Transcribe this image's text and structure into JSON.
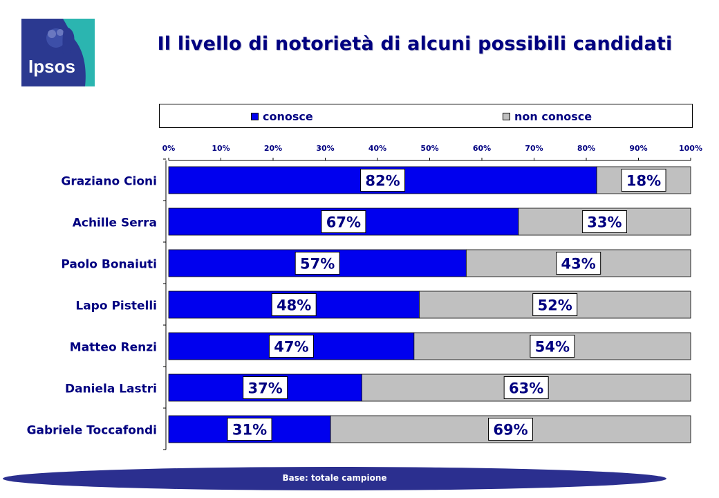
{
  "logo": {
    "text": "Ipsos",
    "colors": {
      "navy": "#2b3990",
      "teal": "#2bb5b0"
    }
  },
  "title": "Il livello di notorietà di alcuni possibili candidati",
  "legend": {
    "items": [
      {
        "label": "conosce",
        "color": "#0000ee"
      },
      {
        "label": "non conosce",
        "color": "#c0c0c0"
      }
    ]
  },
  "footer": {
    "text": "Base: totale campione",
    "color": "#2b2f8f"
  },
  "chart_data": {
    "type": "bar",
    "orientation": "horizontal",
    "stacked": true,
    "categories": [
      "Graziano Cioni",
      "Achille Serra",
      "Paolo Bonaiuti",
      "Lapo Pistelli",
      "Matteo Renzi",
      "Daniela Lastri",
      "Gabriele Toccafondi"
    ],
    "series": [
      {
        "name": "conosce",
        "values": [
          82,
          67,
          57,
          48,
          47,
          37,
          31
        ],
        "color": "#0000ee"
      },
      {
        "name": "non conosce",
        "values": [
          18,
          33,
          43,
          52,
          54,
          63,
          69
        ],
        "color": "#c0c0c0"
      }
    ],
    "data_labels": {
      "conosce": [
        "82%",
        "67%",
        "57%",
        "48%",
        "47%",
        "37%",
        "31%"
      ],
      "non conosce": [
        "18%",
        "33%",
        "43%",
        "52%",
        "54%",
        "63%",
        "69%"
      ]
    },
    "xlim": [
      0,
      100
    ],
    "xticks": [
      "0%",
      "10%",
      "20%",
      "30%",
      "40%",
      "50%",
      "60%",
      "70%",
      "80%",
      "90%",
      "100%"
    ],
    "axis_position": "top",
    "legend_position": "top",
    "grid": false
  }
}
